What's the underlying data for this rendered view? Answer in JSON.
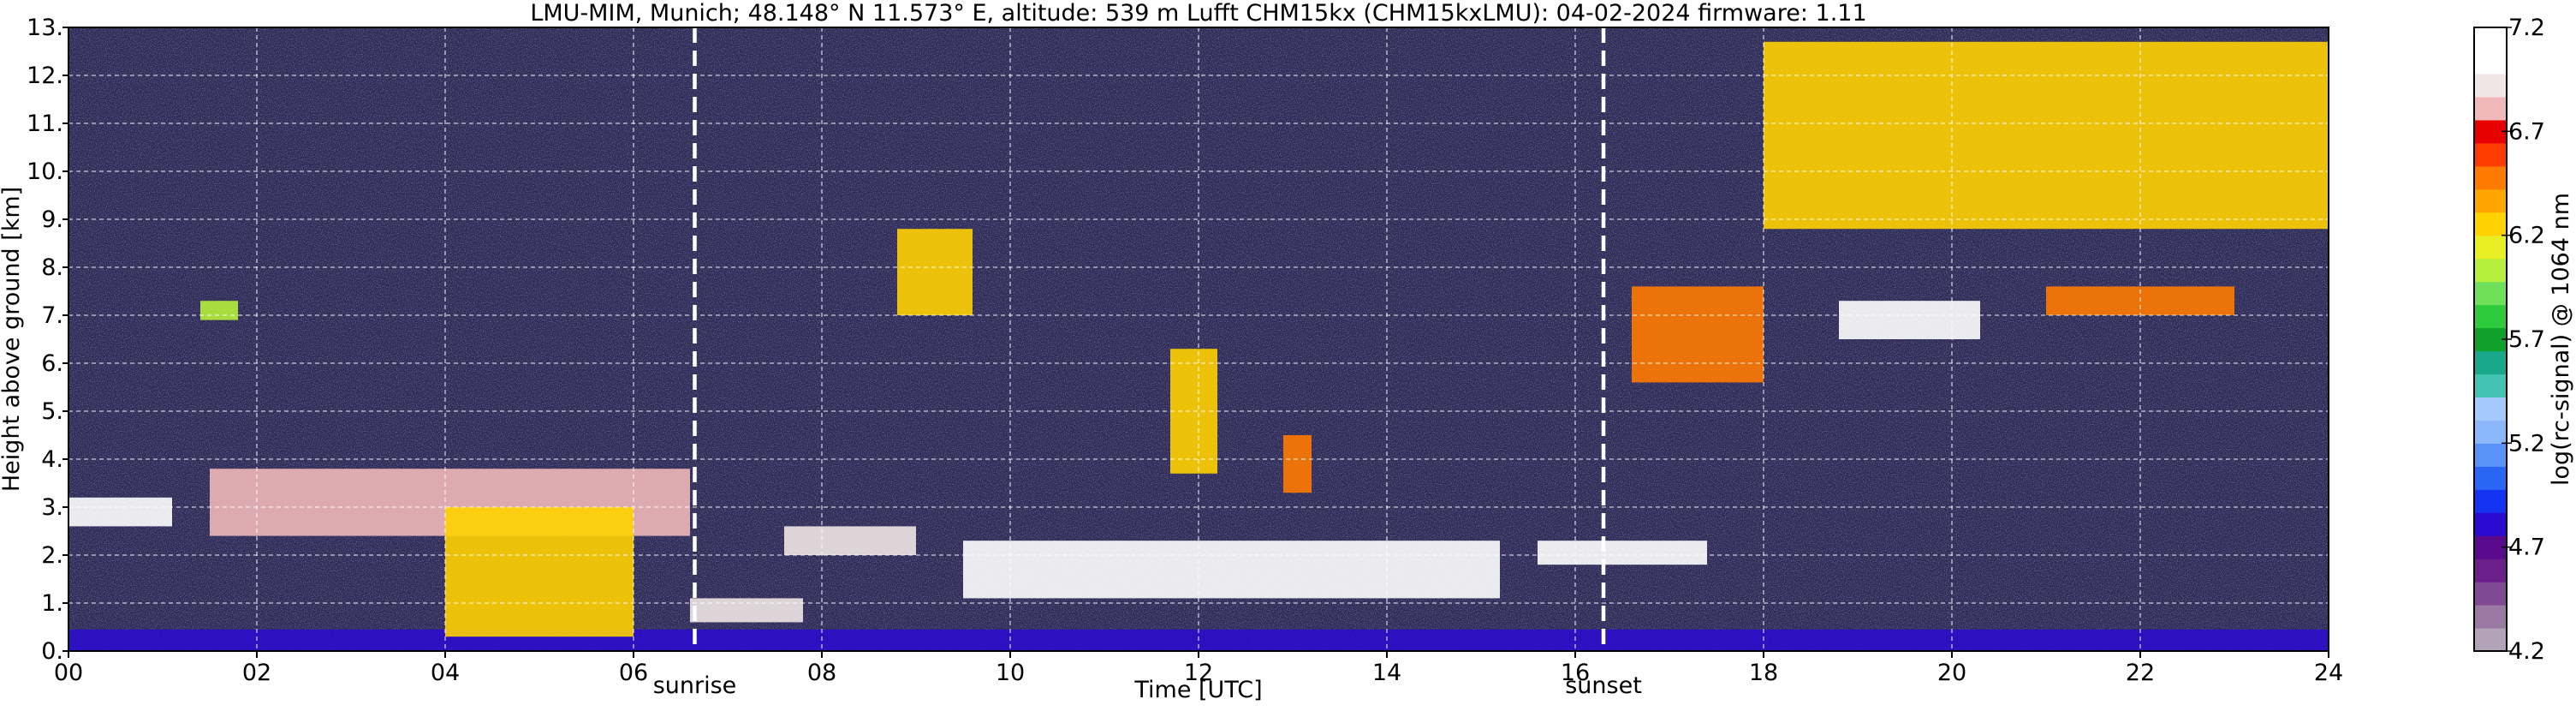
{
  "chart_data": {
    "type": "heatmap",
    "title": "LMU-MIM, Munich; 48.148° N 11.573° E, altitude: 539 m    Lufft CHM15kx (CHM15kxLMU): 04-02-2024    firmware: 1.11",
    "xlabel": "Time [UTC]",
    "ylabel": "Height above ground [km]",
    "xlim": [
      0,
      24
    ],
    "ylim": [
      0,
      13
    ],
    "x_ticks": [
      "00",
      "02",
      "04",
      "06",
      "08",
      "10",
      "12",
      "14",
      "16",
      "18",
      "20",
      "22",
      "24"
    ],
    "y_ticks": [
      "0.",
      "1.",
      "2.",
      "3.",
      "4.",
      "5.",
      "6.",
      "7.",
      "8.",
      "9.",
      "10.",
      "11.",
      "12.",
      "13."
    ],
    "grid": true,
    "markers": [
      {
        "label": "sunrise",
        "x": 6.65
      },
      {
        "label": "sunset",
        "x": 16.3
      }
    ],
    "colorbar": {
      "label": "log(rc-signal) @ 1064 nm",
      "range": [
        4.2,
        7.2
      ],
      "tick_labels": [
        "4.2",
        "4.7",
        "5.2",
        "5.7",
        "6.2",
        "6.7",
        "7.2"
      ],
      "colors": [
        "#b3a3b8",
        "#9a7aa2",
        "#7f4a93",
        "#6a1f8a",
        "#5a0a8c",
        "#2b0bd1",
        "#1333f0",
        "#2a66f5",
        "#5a93f7",
        "#8cb7fa",
        "#a6c9fb",
        "#43c3b1",
        "#1aa88a",
        "#12a02c",
        "#2ecb3c",
        "#6fe05a",
        "#b6ee3c",
        "#e8f025",
        "#ffd200",
        "#ffa500",
        "#ff7a00",
        "#ff3c00",
        "#e80000",
        "#f0b8b8",
        "#f0e6e6",
        "#ffffff",
        "#ffffff"
      ]
    },
    "background_color": "#2e2a55",
    "features": [
      {
        "kind": "boundary_layer",
        "t0": 0,
        "t1": 24,
        "h0": 0.0,
        "h1": 0.45,
        "value": 4.8
      },
      {
        "kind": "cloud",
        "t0": 0,
        "t1": 1.1,
        "h0": 2.6,
        "h1": 3.2,
        "value": 7.0
      },
      {
        "kind": "cloud",
        "t0": 1.4,
        "t1": 1.8,
        "h0": 6.9,
        "h1": 7.3,
        "value": 6.0
      },
      {
        "kind": "cloud",
        "t0": 1.5,
        "t1": 6.6,
        "h0": 2.4,
        "h1": 3.8,
        "value": 6.8
      },
      {
        "kind": "cloud",
        "t0": 4.0,
        "t1": 6.0,
        "h0": 0.3,
        "h1": 3.0,
        "value": 6.3
      },
      {
        "kind": "cloud",
        "t0": 6.6,
        "t1": 7.8,
        "h0": 0.6,
        "h1": 1.1,
        "value": 6.9
      },
      {
        "kind": "cloud",
        "t0": 7.6,
        "t1": 9.0,
        "h0": 2.0,
        "h1": 2.6,
        "value": 6.9
      },
      {
        "kind": "cloud",
        "t0": 8.8,
        "t1": 9.6,
        "h0": 7.0,
        "h1": 8.8,
        "value": 6.2
      },
      {
        "kind": "cloud",
        "t0": 9.5,
        "t1": 15.2,
        "h0": 1.1,
        "h1": 2.3,
        "value": 7.0
      },
      {
        "kind": "cloud",
        "t0": 11.7,
        "t1": 12.2,
        "h0": 3.7,
        "h1": 6.3,
        "value": 6.3
      },
      {
        "kind": "cloud",
        "t0": 12.9,
        "t1": 13.2,
        "h0": 3.3,
        "h1": 4.5,
        "value": 6.5
      },
      {
        "kind": "cloud",
        "t0": 15.6,
        "t1": 17.4,
        "h0": 1.8,
        "h1": 2.3,
        "value": 7.0
      },
      {
        "kind": "cloud",
        "t0": 16.6,
        "t1": 18.0,
        "h0": 5.6,
        "h1": 7.6,
        "value": 6.5
      },
      {
        "kind": "cloud",
        "t0": 18.8,
        "t1": 20.3,
        "h0": 6.5,
        "h1": 7.3,
        "value": 7.0
      },
      {
        "kind": "cloud",
        "t0": 21.0,
        "t1": 23.0,
        "h0": 7.0,
        "h1": 7.6,
        "value": 6.5
      },
      {
        "kind": "cirrus",
        "t0": 18.0,
        "t1": 24.0,
        "h0": 8.8,
        "h1": 12.7,
        "value": 6.3
      }
    ]
  }
}
